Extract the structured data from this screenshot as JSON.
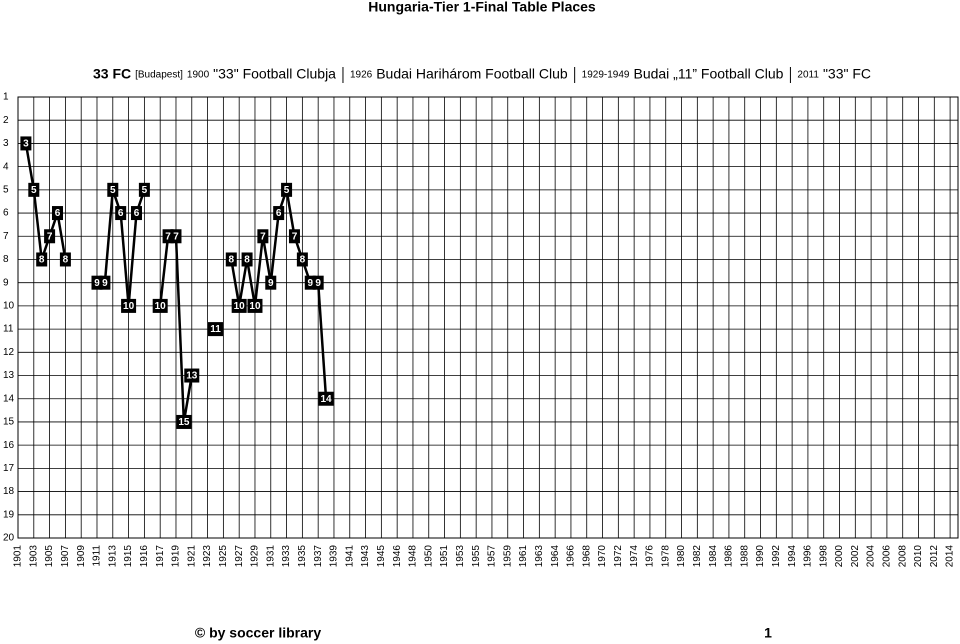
{
  "chart_data": {
    "type": "line",
    "title": "Hungaria-Tier 1-Final Table Places",
    "subtitle": [
      "33 FC",
      "[Budapest]",
      "1900",
      "\"33\" Football Clubja",
      "1926",
      "Budai Harihárom Football Club",
      "1929-1949",
      "Budai „11” Football Club",
      "2011",
      "\"33\" FC"
    ],
    "annotations": [
      "© by soccer library",
      "1"
    ],
    "categories": [
      "1901",
      null,
      "1903",
      null,
      "1905",
      null,
      "1907",
      null,
      "1909",
      null,
      "1911",
      null,
      "1913",
      null,
      "1915",
      null,
      "1916",
      null,
      "1917",
      null,
      "1919",
      null,
      "1921",
      null,
      "1923",
      null,
      "1925",
      null,
      "1927",
      null,
      "1929",
      null,
      "1931",
      null,
      "1933",
      null,
      "1935",
      null,
      "1937",
      null,
      "1939",
      null,
      "1941",
      null,
      "1943",
      null,
      "1945",
      null,
      "1946",
      null,
      "1948",
      null,
      "1950",
      null,
      "1951",
      null,
      "1953",
      null,
      "1955",
      null,
      "1957",
      null,
      "1959",
      null,
      "1961",
      null,
      "1963",
      null,
      "1964",
      null,
      "1966",
      null,
      "1968",
      null,
      "1970",
      null,
      "1972",
      null,
      "1974",
      null,
      "1976",
      null,
      "1978",
      null,
      "1980",
      null,
      "1982",
      null,
      "1984",
      null,
      "1986",
      null,
      "1988",
      null,
      "1990",
      null,
      "1992",
      null,
      "1994",
      null,
      "1996",
      null,
      "1998",
      null,
      "2000",
      null,
      "2002",
      null,
      "2004",
      null,
      "2006",
      null,
      "2008",
      null,
      "2010",
      null,
      "2012",
      null,
      "2014",
      null
    ],
    "values": [
      null,
      3,
      5,
      8,
      7,
      6,
      8,
      null,
      null,
      null,
      9,
      9,
      5,
      6,
      10,
      6,
      5,
      null,
      10,
      7,
      7,
      15,
      13,
      null,
      null,
      11,
      null,
      8,
      10,
      8,
      10,
      7,
      9,
      6,
      5,
      7,
      8,
      9,
      9,
      14,
      null,
      null,
      null,
      null,
      null,
      null,
      null,
      null,
      null,
      null,
      null,
      null,
      null,
      null,
      null,
      null,
      null,
      null,
      null,
      null,
      null,
      null,
      null,
      null,
      null,
      null,
      null,
      null,
      null,
      null,
      null,
      null,
      null,
      null,
      null,
      null,
      null,
      null,
      null,
      null,
      null,
      null,
      null,
      null,
      null,
      null,
      null,
      null,
      null,
      null,
      null,
      null,
      null,
      null,
      null,
      null,
      null,
      null,
      null,
      null,
      null,
      null,
      null,
      null,
      null,
      null,
      null,
      null,
      null,
      null,
      null,
      null,
      null,
      null,
      null,
      null,
      null,
      null,
      null,
      null
    ],
    "color": "#000000",
    "ylim": [
      20,
      1
    ],
    "yticks": [
      1,
      2,
      3,
      4,
      5,
      6,
      7,
      8,
      9,
      10,
      11,
      12,
      13,
      14,
      15,
      16,
      17,
      18,
      19,
      20
    ],
    "grid": true
  }
}
